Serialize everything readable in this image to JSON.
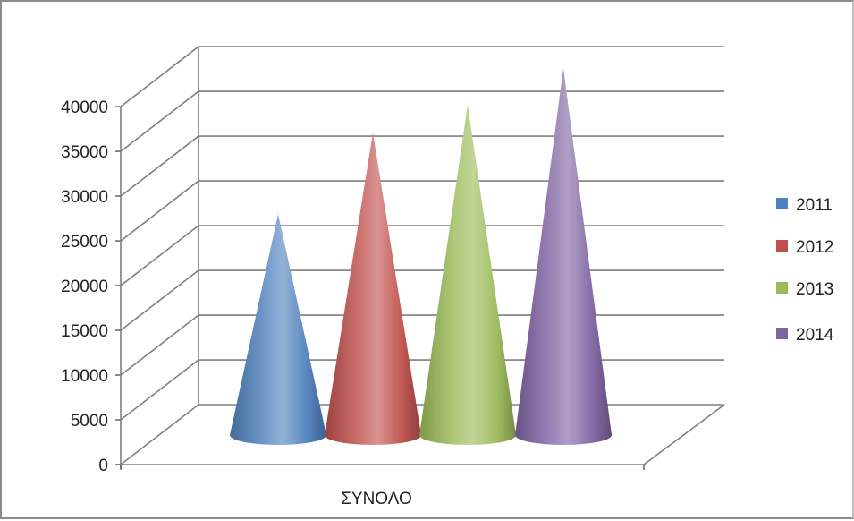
{
  "chart_data": {
    "type": "bar",
    "subtype": "3d-cone",
    "categories": [
      "ΣΥΝΟΛΟ"
    ],
    "series": [
      {
        "name": "2011",
        "values": [
          24700
        ],
        "color": "#4f81bd"
      },
      {
        "name": "2012",
        "values": [
          33800
        ],
        "color": "#c0504d"
      },
      {
        "name": "2013",
        "values": [
          36900
        ],
        "color": "#9bbb59"
      },
      {
        "name": "2014",
        "values": [
          41000
        ],
        "color": "#8064a2"
      }
    ],
    "title": "",
    "xlabel": "",
    "ylabel": "",
    "ylim": [
      0,
      40000
    ],
    "yticks": [
      "0",
      "5000",
      "10000",
      "15000",
      "20000",
      "25000",
      "30000",
      "35000",
      "40000"
    ],
    "grid": true,
    "legend_position": "right"
  }
}
